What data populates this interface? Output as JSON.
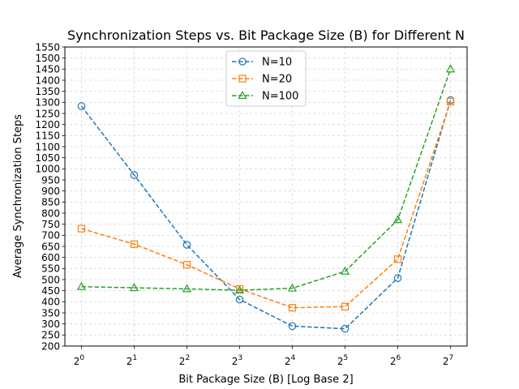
{
  "chart_data": {
    "type": "line",
    "title": "Synchronization Steps vs. Bit Package Size (B) for Different N",
    "xlabel": "Bit Package Size (B) [Log Base 2]",
    "ylabel": "Average Synchronization Steps",
    "x": [
      1,
      2,
      4,
      8,
      16,
      32,
      64,
      128
    ],
    "x_scale": "log2",
    "x_tick_base": "2",
    "x_tick_exponents": [
      "0",
      "1",
      "2",
      "3",
      "4",
      "5",
      "6",
      "7"
    ],
    "ylim": [
      200,
      1550
    ],
    "y_ticks": [
      200,
      250,
      300,
      350,
      400,
      450,
      500,
      550,
      600,
      650,
      700,
      750,
      800,
      850,
      900,
      950,
      1000,
      1050,
      1100,
      1150,
      1200,
      1250,
      1300,
      1350,
      1400,
      1450,
      1500,
      1550
    ],
    "grid": true,
    "legend_position": "top-center",
    "series": [
      {
        "name": "N=10",
        "color": "#1f77b4",
        "marker": "circle",
        "values": [
          1283,
          972,
          657,
          410,
          290,
          278,
          507,
          1310
        ]
      },
      {
        "name": "N=20",
        "color": "#ff7f0e",
        "marker": "square",
        "values": [
          730,
          660,
          567,
          458,
          373,
          378,
          592,
          1303
        ]
      },
      {
        "name": "N=100",
        "color": "#2ca02c",
        "marker": "triangle",
        "values": [
          468,
          463,
          458,
          452,
          461,
          537,
          770,
          1450
        ]
      }
    ]
  }
}
